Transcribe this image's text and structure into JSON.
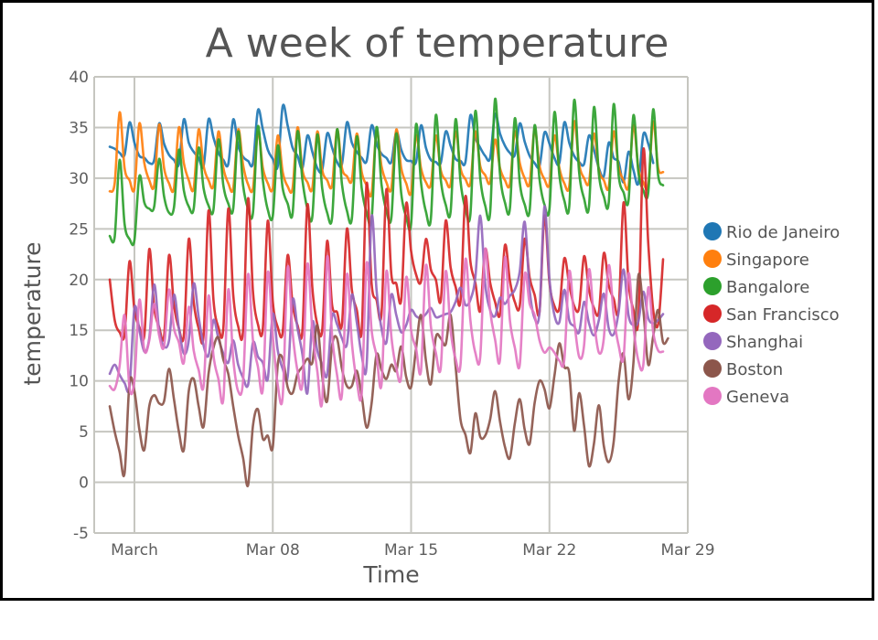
{
  "chart_data": {
    "type": "line",
    "title": "A week of temperature",
    "xlabel": "Time",
    "ylabel": "temperature",
    "ylim": [
      -5,
      40
    ],
    "yticks": [
      -5,
      0,
      5,
      10,
      15,
      20,
      25,
      30,
      35,
      40
    ],
    "ytick_labels": [
      "-5",
      "0",
      "5",
      "10",
      "15",
      "20",
      "25",
      "30",
      "35",
      "40"
    ],
    "x_unit": "days since March 1",
    "xlim": [
      -1.9,
      28
    ],
    "xticks": [
      0,
      7,
      14,
      21,
      28
    ],
    "xtick_labels": [
      "March",
      "Mar 08",
      "Mar 15",
      "Mar 22",
      "Mar 29"
    ],
    "x_start": -1.25,
    "x_step": 0.25,
    "grid": true,
    "legend_position": "right",
    "series": [
      {
        "name": "Rio de Janeiro",
        "color": "#1f77b4",
        "values": [
          33.1,
          32.9,
          32.5,
          32.3,
          35.5,
          33.5,
          32.2,
          32.0,
          31.5,
          31.8,
          35.4,
          33.4,
          32.3,
          31.8,
          31.4,
          35.8,
          33.5,
          32.6,
          32.0,
          31.2,
          35.8,
          34.0,
          32.5,
          31.8,
          31.4,
          35.8,
          33.2,
          32.1,
          31.7,
          31.5,
          36.7,
          34.8,
          32.8,
          31.9,
          31.2,
          37.1,
          35.2,
          33.0,
          32.2,
          31.0,
          34.2,
          32.6,
          31.0,
          30.8,
          34.4,
          33.0,
          31.6,
          31.4,
          35.5,
          33.5,
          32.6,
          32.0,
          31.7,
          35.2,
          33.4,
          32.4,
          32.0,
          31.6,
          34.6,
          32.8,
          31.8,
          31.7,
          31.6,
          35.2,
          33.0,
          31.8,
          31.6,
          31.5,
          34.6,
          33.2,
          31.9,
          31.7,
          31.6,
          36.2,
          34.0,
          33.0,
          32.2,
          32.0,
          36.3,
          34.4,
          33.2,
          32.5,
          32.3,
          35.4,
          33.6,
          32.2,
          31.5,
          31.2,
          34.5,
          33.4,
          32.0,
          31.5,
          35.5,
          33.5,
          32.2,
          31.6,
          31.4,
          34.2,
          32.8,
          31.0,
          30.2,
          33.5,
          32.0,
          31.6,
          29.6,
          32.6,
          30.8,
          29.5,
          34.3,
          33.4,
          31.5
        ]
      },
      {
        "name": "Singapore",
        "color": "#ff7f0e",
        "values": [
          28.7,
          29.5,
          36.5,
          31.0,
          29.8,
          29.0,
          35.4,
          31.5,
          29.8,
          29.3,
          35.3,
          31.0,
          29.5,
          29.0,
          35.0,
          31.5,
          29.8,
          29.0,
          34.8,
          31.2,
          29.8,
          29.3,
          34.6,
          31.0,
          29.5,
          29.0,
          34.8,
          31.3,
          29.4,
          29.0,
          34.6,
          31.0,
          29.5,
          29.0,
          34.2,
          30.6,
          29.2,
          29.0,
          35.0,
          30.8,
          29.6,
          29.0,
          34.6,
          30.8,
          29.8,
          29.3,
          34.8,
          31.0,
          30.2,
          29.8,
          34.4,
          30.6,
          29.3,
          28.5,
          34.6,
          31.2,
          29.6,
          29.0,
          34.8,
          31.0,
          29.5,
          28.6,
          34.2,
          31.0,
          29.6,
          29.4,
          34.2,
          30.8,
          29.8,
          29.4,
          34.6,
          31.0,
          29.9,
          29.5,
          34.6,
          31.2,
          30.3,
          29.6,
          33.8,
          31.0,
          29.8,
          29.4,
          34.6,
          31.5,
          30.0,
          29.5,
          34.8,
          31.2,
          29.9,
          29.4,
          34.2,
          31.0,
          29.5,
          29.2,
          35.6,
          31.4,
          30.0,
          29.6,
          34.4,
          30.8,
          29.8,
          29.1,
          34.6,
          31.1,
          29.8,
          29.2,
          35.2,
          31.0,
          29.6,
          29.3,
          35.6,
          31.0,
          30.6
        ]
      },
      {
        "name": "Bangalore",
        "color": "#2ca02c",
        "values": [
          24.3,
          24.2,
          31.8,
          25.5,
          24.0,
          23.9,
          30.2,
          27.6,
          27.0,
          27.2,
          31.9,
          28.2,
          26.6,
          27.1,
          32.8,
          28.8,
          27.2,
          27.0,
          33.0,
          29.0,
          27.3,
          26.9,
          33.8,
          29.3,
          27.5,
          27.0,
          34.6,
          29.3,
          27.0,
          26.6,
          35.1,
          29.8,
          26.9,
          26.3,
          33.2,
          29.0,
          27.5,
          26.5,
          34.6,
          29.8,
          27.0,
          26.2,
          34.3,
          29.0,
          26.6,
          26.1,
          34.8,
          29.4,
          26.8,
          26.0,
          34.1,
          29.0,
          26.6,
          25.9,
          35.0,
          29.4,
          26.8,
          26.1,
          34.4,
          28.5,
          26.2,
          25.5,
          35.3,
          29.6,
          26.7,
          26.0,
          36.2,
          29.9,
          27.4,
          26.7,
          35.8,
          29.7,
          27.0,
          26.4,
          36.6,
          30.0,
          27.3,
          26.6,
          37.8,
          30.4,
          27.6,
          27.0,
          35.9,
          29.6,
          27.4,
          26.8,
          35.2,
          29.9,
          27.4,
          27.0,
          36.5,
          30.3,
          27.8,
          27.2,
          37.7,
          30.6,
          28.0,
          27.2,
          37.0,
          30.4,
          28.2,
          27.6,
          37.3,
          30.3,
          28.6,
          27.8,
          36.2,
          30.6,
          28.8,
          28.6,
          36.8,
          30.3,
          29.3
        ]
      },
      {
        "name": "San Francisco",
        "color": "#d62728",
        "values": [
          20.0,
          16.0,
          14.8,
          14.6,
          21.8,
          17.0,
          15.3,
          14.5,
          23.0,
          17.2,
          15.3,
          14.4,
          22.4,
          17.5,
          15.2,
          14.5,
          24.0,
          17.8,
          15.2,
          14.5,
          26.8,
          18.0,
          15.3,
          15.2,
          27.0,
          18.5,
          15.4,
          15.0,
          28.0,
          18.8,
          15.6,
          15.2,
          25.8,
          17.8,
          15.3,
          14.8,
          22.4,
          17.6,
          15.5,
          15.0,
          27.4,
          19.2,
          15.6,
          15.0,
          23.8,
          17.5,
          16.8,
          15.6,
          25.0,
          19.0,
          17.0,
          15.0,
          29.5,
          19.6,
          18.0,
          16.6,
          28.9,
          20.5,
          19.6,
          18.0,
          27.5,
          22.8,
          20.5,
          19.8,
          24.0,
          21.0,
          20.0,
          17.9,
          25.8,
          21.2,
          19.3,
          17.9,
          28.2,
          21.8,
          19.7,
          16.9,
          23.0,
          19.7,
          17.8,
          16.6,
          23.4,
          19.9,
          17.8,
          17.4,
          24.0,
          20.2,
          18.5,
          16.8,
          26.3,
          19.7,
          17.4,
          17.2,
          22.1,
          19.5,
          17.4,
          17.2,
          22.3,
          19.0,
          17.2,
          16.8,
          22.6,
          19.4,
          18.1,
          17.0,
          27.6,
          19.8,
          17.0,
          16.1,
          32.8,
          23.6,
          17.0,
          15.6,
          22.0
        ]
      },
      {
        "name": "Shanghai",
        "color": "#9467bd",
        "values": [
          10.7,
          11.6,
          10.6,
          9.8,
          9.4,
          17.2,
          15.0,
          12.9,
          14.2,
          19.5,
          15.0,
          13.4,
          14.0,
          18.5,
          15.2,
          12.7,
          14.0,
          19.6,
          16.3,
          13.5,
          12.5,
          16.0,
          14.2,
          12.7,
          11.8,
          14.0,
          11.6,
          10.3,
          9.6,
          13.8,
          12.4,
          11.8,
          10.2,
          16.6,
          13.0,
          11.2,
          10.4,
          18.0,
          15.2,
          12.6,
          8.8,
          15.8,
          13.0,
          11.6,
          10.6,
          16.4,
          15.6,
          14.2,
          13.6,
          18.5,
          15.8,
          12.5,
          11.6,
          26.2,
          19.0,
          15.2,
          13.8,
          18.5,
          16.5,
          14.8,
          15.5,
          17.0,
          16.4,
          16.2,
          16.6,
          17.2,
          16.3,
          16.4,
          16.6,
          16.8,
          17.8,
          19.2,
          17.5,
          18.0,
          20.2,
          26.3,
          19.6,
          17.0,
          16.4,
          18.2,
          17.6,
          18.4,
          19.0,
          20.8,
          25.7,
          19.0,
          16.2,
          16.8,
          27.2,
          20.0,
          16.5,
          15.8,
          19.0,
          16.0,
          15.4,
          14.8,
          17.8,
          15.7,
          14.5,
          16.0,
          18.6,
          15.2,
          14.6,
          16.8,
          21.0,
          16.5,
          15.5,
          15.9,
          18.8,
          16.2,
          15.7,
          16.0,
          16.6
        ]
      },
      {
        "name": "Boston",
        "color": "#8c564b",
        "values": [
          7.5,
          5.0,
          3.0,
          0.9,
          9.8,
          9.0,
          5.2,
          3.2,
          7.5,
          8.6,
          7.8,
          8.0,
          11.2,
          8.2,
          5.0,
          3.2,
          9.0,
          10.2,
          7.5,
          5.5,
          10.7,
          13.3,
          14.3,
          12.1,
          10.7,
          7.5,
          4.6,
          2.4,
          -0.3,
          5.6,
          7.2,
          4.3,
          4.6,
          3.5,
          11.6,
          12.2,
          9.4,
          8.8,
          10.7,
          11.4,
          12.2,
          11.8,
          15.5,
          10.5,
          8.0,
          13.5,
          14.2,
          11.2,
          9.5,
          9.5,
          11.0,
          8.5,
          5.4,
          7.8,
          12.6,
          11.1,
          10.2,
          11.6,
          11.0,
          13.4,
          10.4,
          9.4,
          13.2,
          16.5,
          12.0,
          9.7,
          14.3,
          14.2,
          13.6,
          16.5,
          11.5,
          6.2,
          4.7,
          2.9,
          6.8,
          4.5,
          4.6,
          6.2,
          9.0,
          6.0,
          3.5,
          2.4,
          5.8,
          8.2,
          5.2,
          3.8,
          7.8,
          10.0,
          9.2,
          7.3,
          10.5,
          13.7,
          11.4,
          10.8,
          5.1,
          8.8,
          5.6,
          1.6,
          3.8,
          7.6,
          3.6,
          2.0,
          4.0,
          10.0,
          12.7,
          8.2,
          11.8,
          20.4,
          17.0,
          11.6,
          14.4,
          17.0,
          13.8,
          14.2
        ]
      },
      {
        "name": "Geneva",
        "color": "#e377c2",
        "values": [
          9.5,
          9.2,
          11.5,
          16.5,
          9.3,
          10.1,
          18.0,
          13.0,
          14.0,
          17.6,
          14.5,
          13.4,
          19.0,
          15.2,
          13.8,
          11.8,
          17.3,
          13.0,
          11.1,
          9.5,
          18.4,
          12.5,
          10.2,
          8.2,
          19.0,
          12.2,
          9.0,
          10.0,
          20.5,
          14.0,
          11.4,
          9.2,
          20.7,
          14.4,
          9.6,
          8.5,
          21.2,
          14.8,
          11.0,
          9.8,
          21.5,
          15.0,
          11.0,
          8.0,
          22.2,
          14.5,
          10.6,
          8.7,
          20.5,
          13.8,
          10.0,
          8.8,
          21.6,
          15.0,
          12.5,
          9.6,
          20.8,
          14.4,
          11.3,
          10.5,
          20.2,
          15.0,
          13.2,
          11.0,
          21.4,
          15.4,
          12.8,
          11.3,
          20.8,
          15.0,
          12.2,
          11.6,
          22.0,
          16.0,
          12.8,
          12.4,
          23.0,
          17.0,
          14.1,
          12.1,
          22.2,
          16.0,
          13.3,
          11.6,
          20.5,
          17.6,
          16.5,
          14.0,
          12.8,
          13.3,
          12.8,
          12.0,
          12.1,
          20.8,
          16.0,
          12.4,
          13.5,
          21.0,
          16.0,
          12.8,
          14.2,
          21.4,
          16.5,
          13.5,
          12.3,
          20.6,
          15.3,
          12.0,
          11.6,
          19.2,
          14.8,
          13.0,
          12.9
        ]
      }
    ]
  }
}
